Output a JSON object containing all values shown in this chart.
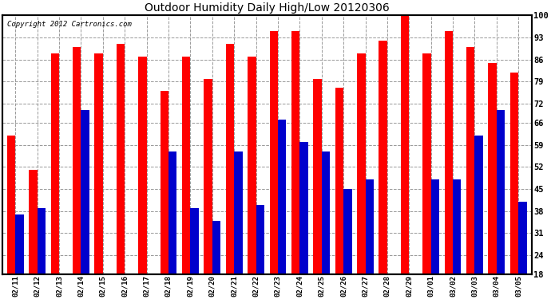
{
  "title": "Outdoor Humidity Daily High/Low 20120306",
  "copyright": "Copyright 2012 Cartronics.com",
  "dates": [
    "02/11",
    "02/12",
    "02/13",
    "02/14",
    "02/15",
    "02/16",
    "02/17",
    "02/18",
    "02/19",
    "02/20",
    "02/21",
    "02/22",
    "02/23",
    "02/24",
    "02/25",
    "02/26",
    "02/27",
    "02/28",
    "02/29",
    "03/01",
    "03/02",
    "03/03",
    "03/04",
    "03/05"
  ],
  "highs": [
    62,
    51,
    88,
    90,
    88,
    91,
    87,
    76,
    87,
    80,
    91,
    87,
    95,
    95,
    80,
    77,
    88,
    92,
    100,
    88,
    95,
    90,
    85,
    82
  ],
  "lows": [
    37,
    39,
    18,
    70,
    18,
    18,
    18,
    57,
    39,
    35,
    57,
    40,
    67,
    60,
    57,
    45,
    48,
    18,
    18,
    48,
    48,
    62,
    70,
    41
  ],
  "bar_color_high": "#ff0000",
  "bar_color_low": "#0000cc",
  "bg_color": "#ffffff",
  "plot_bg_color": "#ffffff",
  "grid_color": "#999999",
  "ylim_min": 18,
  "ylim_max": 100,
  "yticks": [
    18,
    24,
    31,
    38,
    45,
    52,
    59,
    66,
    72,
    79,
    86,
    93,
    100
  ]
}
